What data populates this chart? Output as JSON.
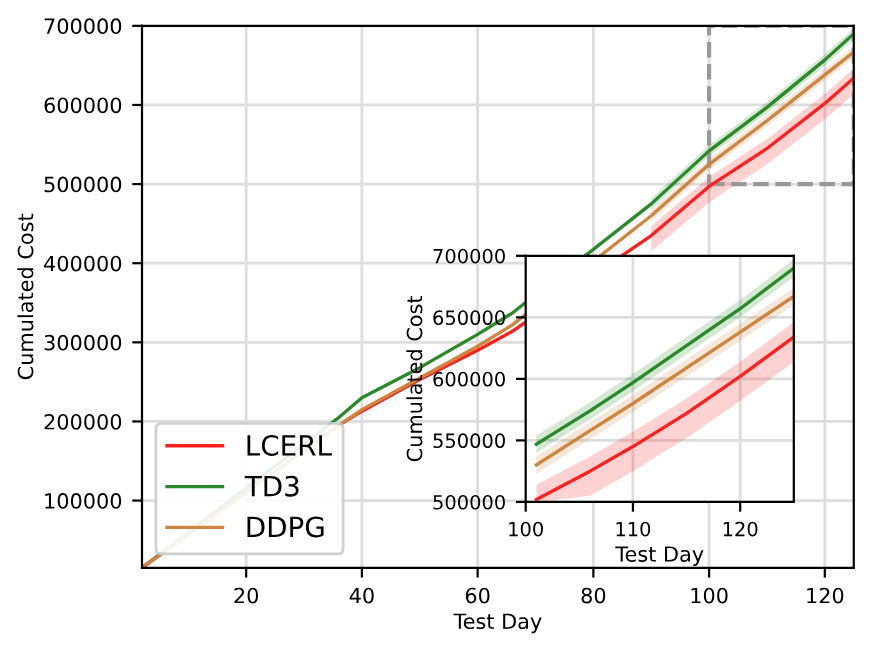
{
  "chart_data": [
    {
      "type": "line",
      "xlabel": "Test Day",
      "ylabel": "Cumulated Cost",
      "x": [
        2,
        36,
        40,
        50,
        60,
        66,
        90,
        100,
        110,
        120,
        125
      ],
      "xlim": [
        2,
        125
      ],
      "ylim": [
        15000,
        700000
      ],
      "xticks": [
        20,
        40,
        60,
        80,
        100,
        120
      ],
      "yticks": [
        100000,
        200000,
        300000,
        400000,
        500000,
        600000,
        700000
      ],
      "grid": true,
      "legend": "bottom left",
      "series": [
        {
          "name": "LCERL",
          "color": "#ff2020",
          "values": [
            15000,
            195000,
            213000,
            253000,
            290000,
            314000,
            435000,
            497000,
            545000,
            602000,
            634000
          ],
          "lower": [
            null,
            null,
            null,
            null,
            null,
            null,
            415000,
            477000,
            525000,
            582000,
            614000
          ],
          "upper": [
            null,
            null,
            null,
            null,
            null,
            null,
            447000,
            509000,
            557000,
            614000,
            646000
          ]
        },
        {
          "name": "TD3",
          "color": "#2a8a2a",
          "values": [
            15000,
            205000,
            230000,
            268000,
            310000,
            337000,
            475000,
            542000,
            597000,
            657000,
            690000
          ],
          "lower": [
            null,
            null,
            null,
            null,
            null,
            null,
            468000,
            535000,
            590000,
            650000,
            683000
          ],
          "upper": [
            null,
            null,
            null,
            null,
            null,
            null,
            482000,
            549000,
            604000,
            664000,
            697000
          ]
        },
        {
          "name": "DDPG",
          "color": "#cd853f",
          "values": [
            15000,
            195000,
            215000,
            255000,
            295000,
            322000,
            460000,
            525000,
            580000,
            638000,
            667000
          ],
          "lower": [
            null,
            null,
            null,
            null,
            null,
            null,
            453000,
            518000,
            573000,
            631000,
            660000
          ],
          "upper": [
            null,
            null,
            null,
            null,
            null,
            null,
            467000,
            532000,
            587000,
            645000,
            674000
          ]
        }
      ]
    },
    {
      "type": "line",
      "xlabel": "Test Day",
      "ylabel": "Cumulated Cost",
      "x": [
        101,
        106,
        110,
        115,
        120,
        125
      ],
      "xlim": [
        100,
        125
      ],
      "ylim": [
        500000,
        700000
      ],
      "xticks": [
        100,
        110,
        120
      ],
      "yticks": [
        500000,
        550000,
        600000,
        650000,
        700000
      ],
      "grid": true,
      "series": [
        {
          "color": "#ff2020",
          "values": [
            502000,
            525000,
            545000,
            572000,
            602000,
            634000
          ],
          "lower": [
            500000,
            505000,
            525000,
            552000,
            582000,
            614000
          ],
          "upper": [
            514000,
            537000,
            557000,
            584000,
            614000,
            646000
          ]
        },
        {
          "color": "#2a8a2a",
          "values": [
            547000,
            574000,
            597000,
            627000,
            657000,
            690000
          ],
          "lower": [
            540000,
            567000,
            590000,
            620000,
            650000,
            683000
          ],
          "upper": [
            554000,
            581000,
            604000,
            634000,
            664000,
            697000
          ]
        },
        {
          "color": "#cd853f",
          "values": [
            530000,
            558000,
            580000,
            609000,
            638000,
            667000
          ],
          "lower": [
            523000,
            551000,
            573000,
            602000,
            631000,
            660000
          ],
          "upper": [
            537000,
            565000,
            587000,
            616000,
            645000,
            674000
          ]
        }
      ]
    }
  ]
}
